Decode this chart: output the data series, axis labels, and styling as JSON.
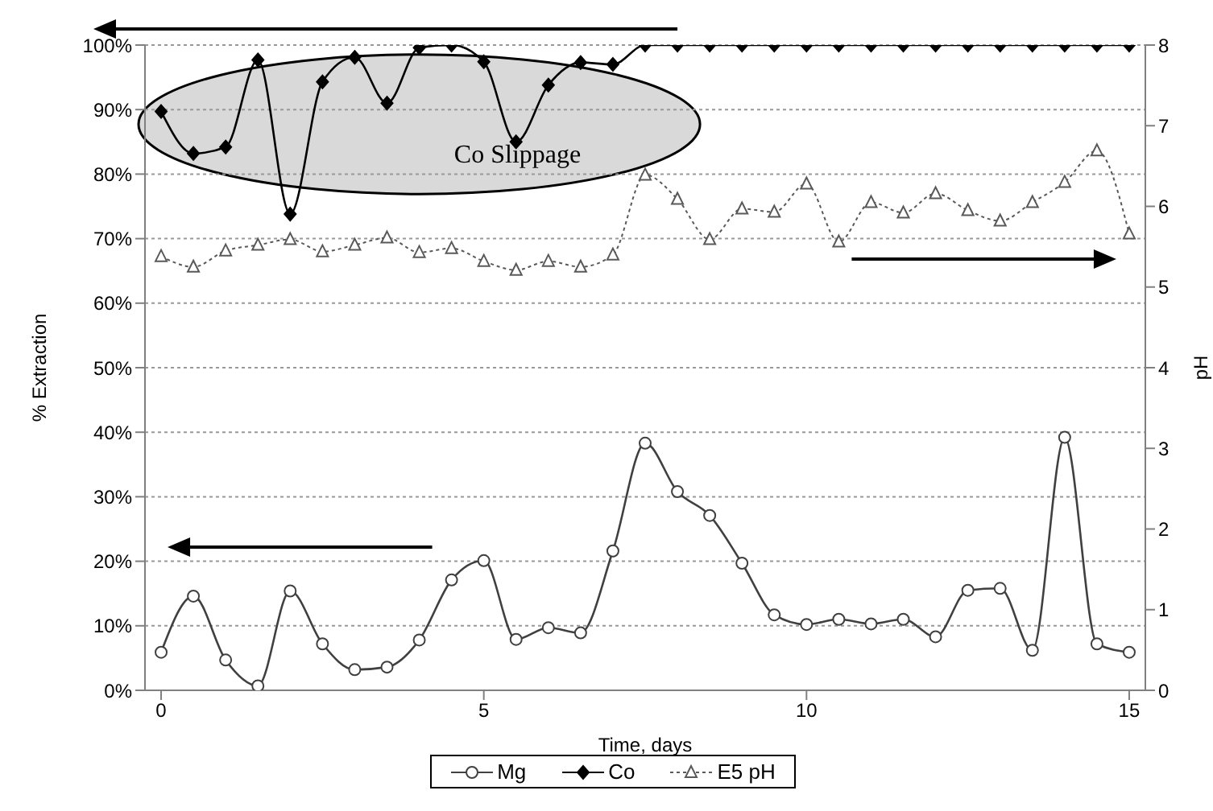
{
  "chart_data": {
    "type": "line",
    "xlabel": "Time, days",
    "ylabel": "% Extraction",
    "y2label": "pH",
    "x": [
      0,
      0.5,
      1,
      1.5,
      2,
      2.5,
      3,
      3.5,
      4,
      4.5,
      5,
      5.5,
      6,
      6.5,
      7,
      7.5,
      8,
      8.5,
      9,
      9.5,
      10,
      10.5,
      11,
      11.5,
      12,
      12.5,
      13,
      13.5,
      14,
      14.5,
      15
    ],
    "series": [
      {
        "name": "Mg",
        "color": "#404040",
        "marker": "circle",
        "line_style": "solid",
        "values": [
          5.9,
          14.6,
          4.7,
          0.7,
          15.4,
          7.2,
          3.2,
          3.6,
          7.8,
          17.1,
          20.1,
          7.9,
          9.7,
          8.9,
          21.6,
          38.3,
          30.8,
          27.1,
          19.7,
          11.7,
          10.2,
          11.0,
          10.3,
          11.0,
          8.3,
          15.5,
          15.8,
          6.2,
          39.2,
          7.2,
          5.9
        ]
      },
      {
        "name": "Co",
        "color": "#000000",
        "marker": "diamond",
        "line_style": "solid",
        "values": [
          89.7,
          83.2,
          84.2,
          97.7,
          73.8,
          94.3,
          98.1,
          91.0,
          99.6,
          100,
          97.4,
          85.0,
          93.8,
          97.3,
          97.0,
          100,
          100,
          100,
          100,
          100,
          100,
          100,
          100,
          100,
          100,
          100,
          100,
          100,
          100,
          100,
          100
        ]
      },
      {
        "name": "E5 pH",
        "color": "#595959",
        "marker": "triangle",
        "line_style": "dotted",
        "axis": "y2",
        "values": [
          5.38,
          5.25,
          5.45,
          5.52,
          5.59,
          5.44,
          5.52,
          5.61,
          5.43,
          5.48,
          5.32,
          5.21,
          5.32,
          5.25,
          5.4,
          6.39,
          6.09,
          5.59,
          5.97,
          5.93,
          6.28,
          5.56,
          6.05,
          5.92,
          6.16,
          5.95,
          5.82,
          6.05,
          6.3,
          6.69,
          5.66
        ]
      }
    ],
    "xlim": [
      -0.25,
      15.25
    ],
    "xticks": [
      0,
      5,
      10,
      15
    ],
    "ylim": [
      0,
      100
    ],
    "yticks": [
      {
        "value": 0,
        "label": "0%"
      },
      {
        "value": 10,
        "label": "10%"
      },
      {
        "value": 20,
        "label": "20%"
      },
      {
        "value": 30,
        "label": "30%"
      },
      {
        "value": 40,
        "label": "40%"
      },
      {
        "value": 50,
        "label": "50%"
      },
      {
        "value": 60,
        "label": "60%"
      },
      {
        "value": 70,
        "label": "70%"
      },
      {
        "value": 80,
        "label": "80%"
      },
      {
        "value": 90,
        "label": "90%"
      },
      {
        "value": 100,
        "label": "100%"
      }
    ],
    "y2lim": [
      0,
      8
    ],
    "y2ticks": [
      0,
      1,
      2,
      3,
      4,
      5,
      6,
      7,
      8
    ],
    "annotations": [
      "Co Slippage"
    ],
    "grid": "y",
    "legend": "bottom"
  }
}
